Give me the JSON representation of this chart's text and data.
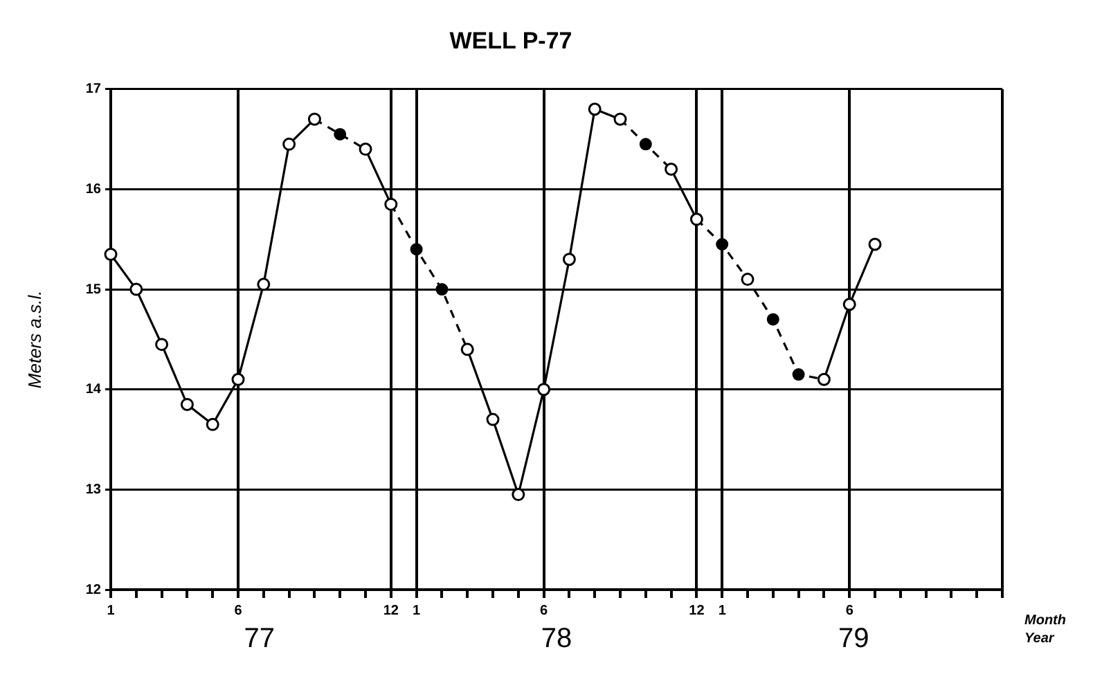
{
  "chart_data": {
    "type": "line",
    "title": "WELL P-77",
    "xlabel": "Month\nYear",
    "ylabel": "Meters a.s.l.",
    "categories": [
      "1",
      null,
      null,
      null,
      null,
      "6",
      null,
      null,
      null,
      null,
      null,
      "12",
      "1",
      null,
      null,
      null,
      null,
      "6",
      null,
      null,
      null,
      null,
      null,
      "12",
      "1",
      null,
      null,
      null,
      null,
      "6",
      null,
      null,
      null,
      null,
      null,
      null
    ],
    "series": [
      {
        "color": "#000000",
        "line_style": "solid",
        "values": [
          15.35,
          15.0,
          14.45,
          13.85,
          13.65,
          14.1,
          15.05,
          16.45,
          16.7,
          16.55,
          16.4,
          15.85,
          15.4,
          15.0,
          14.4,
          13.7,
          12.95,
          14.0,
          15.3,
          16.8,
          16.7,
          16.45,
          16.2,
          15.7,
          15.45,
          15.1,
          14.7,
          14.15,
          14.1,
          14.85,
          15.45,
          null,
          null,
          null,
          null,
          null
        ]
      },
      {
        "type": "scatter",
        "color": "#000000",
        "values": [
          null,
          null,
          null,
          null,
          null,
          null,
          null,
          null,
          null,
          16.55,
          null,
          null,
          15.4,
          15.0,
          null,
          null,
          null,
          null,
          null,
          null,
          null,
          16.45,
          null,
          null,
          15.45,
          null,
          14.7,
          14.15,
          null,
          null,
          null,
          null,
          null,
          null,
          null,
          null
        ]
      }
    ],
    "ylim": [
      12,
      17
    ],
    "yticks": [
      12,
      13,
      14,
      15,
      16,
      17
    ],
    "grid": true,
    "marker": "circle",
    "annotations": [
      "77",
      "78",
      "79"
    ]
  }
}
